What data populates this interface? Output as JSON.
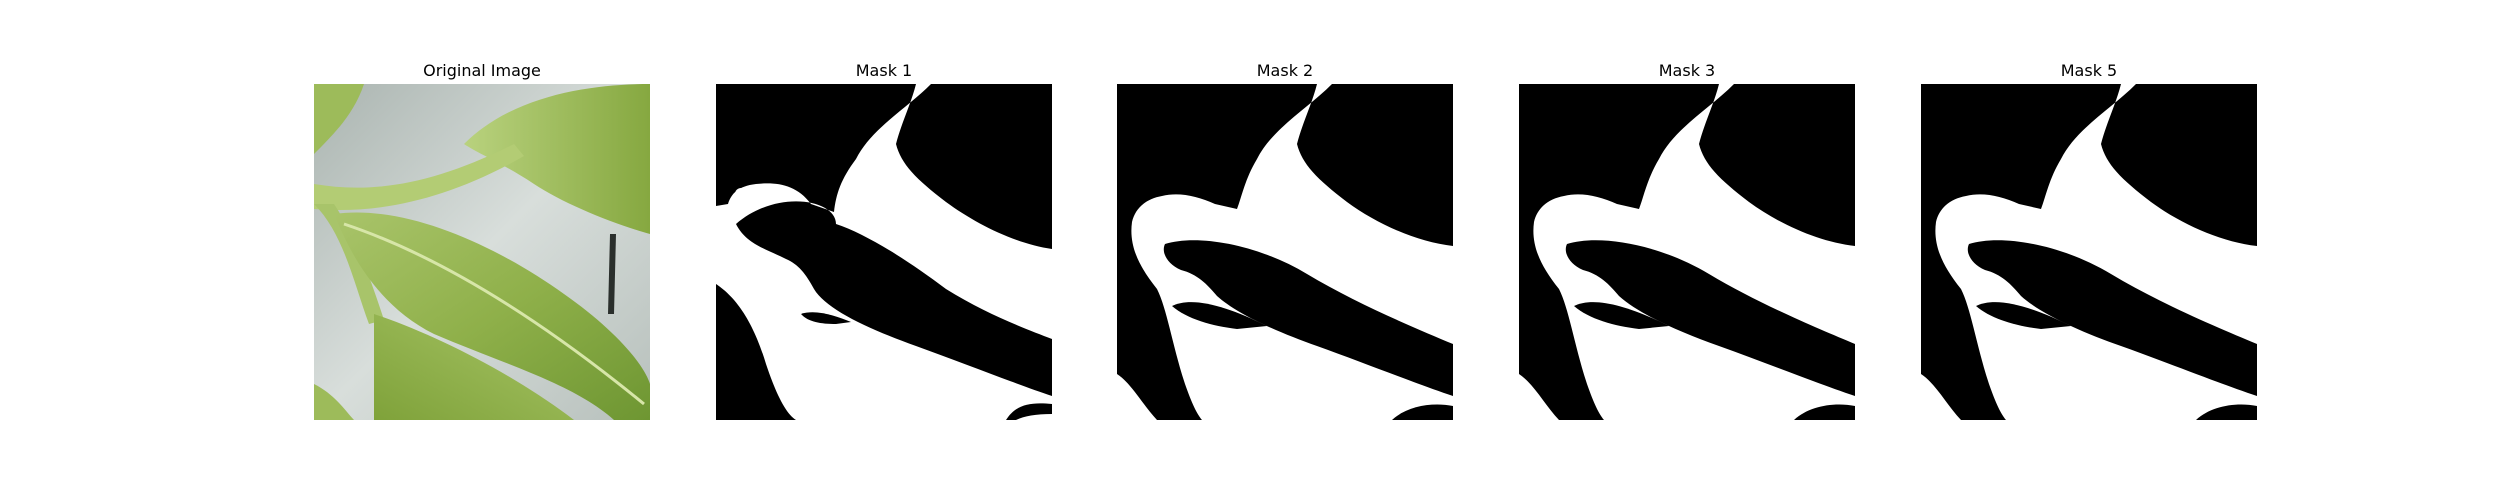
{
  "panels": [
    {
      "title": "Original Image",
      "kind": "photo"
    },
    {
      "title": "Mask 1",
      "kind": "mask",
      "variant": "noisy"
    },
    {
      "title": "Mask 2",
      "kind": "mask",
      "variant": "clean"
    },
    {
      "title": "Mask 3",
      "kind": "mask",
      "variant": "clean"
    },
    {
      "title": "Mask 5",
      "kind": "mask",
      "variant": "clean"
    }
  ],
  "colors": {
    "background": "#ffffff",
    "mask_foreground": "#ffffff",
    "mask_background": "#000000",
    "leaf_light": "#b8cf7a",
    "leaf_mid": "#8fb04a",
    "leaf_dark": "#5f8a2a",
    "backdrop": "#c9d2cf"
  }
}
